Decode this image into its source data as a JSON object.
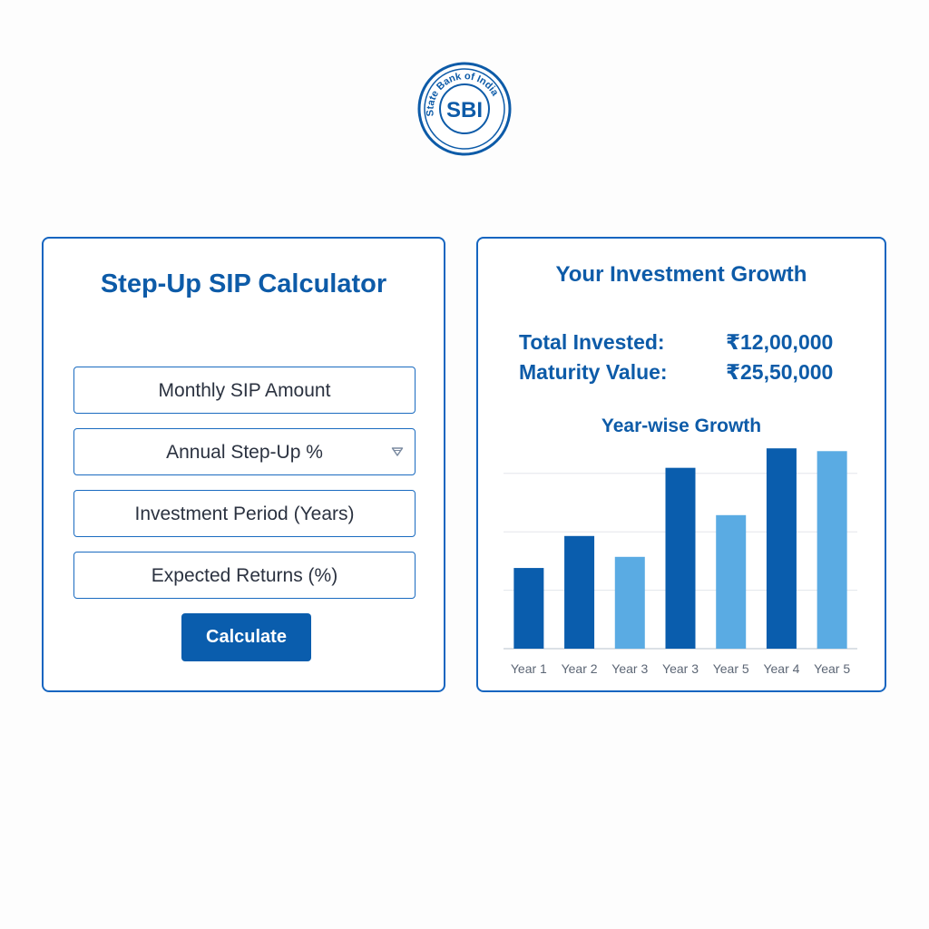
{
  "logo": {
    "text": "SBI",
    "ring_text": "State Bank of India",
    "color": "#0d5ba8"
  },
  "calculator": {
    "title": "Step-Up SIP Calculator",
    "fields": [
      {
        "label": "Monthly SIP Amount"
      },
      {
        "label": "Annual Step-Up %",
        "icon": "chevron-down-icon"
      },
      {
        "label": "Investment Period (Years)"
      },
      {
        "label": "Expected Returns (%)"
      }
    ],
    "button_label": "Calculate"
  },
  "growth": {
    "title": "Your Investment Growth",
    "total_invested_label": "Total Invested:",
    "total_invested_value": "₹12,00,000",
    "maturity_label": "Maturity Value:",
    "maturity_value": "₹25,50,000"
  },
  "chart_data": {
    "type": "bar",
    "title": "Year-wise Growth",
    "categories": [
      "Year 1",
      "Year 2",
      "Year 3",
      "Year 3",
      "Year 5",
      "Year 4",
      "Year 5"
    ],
    "values": [
      2.9,
      4.05,
      3.3,
      6.5,
      4.8,
      7.2,
      7.1
    ],
    "bar_colors": [
      "#0a5dad",
      "#0a5dad",
      "#5aabe3",
      "#0a5dad",
      "#5aabe3",
      "#0a5dad",
      "#5aabe3"
    ],
    "ylim": [
      0,
      7.5
    ],
    "grid": true,
    "xlabel": "",
    "ylabel": ""
  },
  "colors": {
    "primary": "#0a5dad",
    "light": "#5aabe3",
    "border": "#1565c0"
  }
}
